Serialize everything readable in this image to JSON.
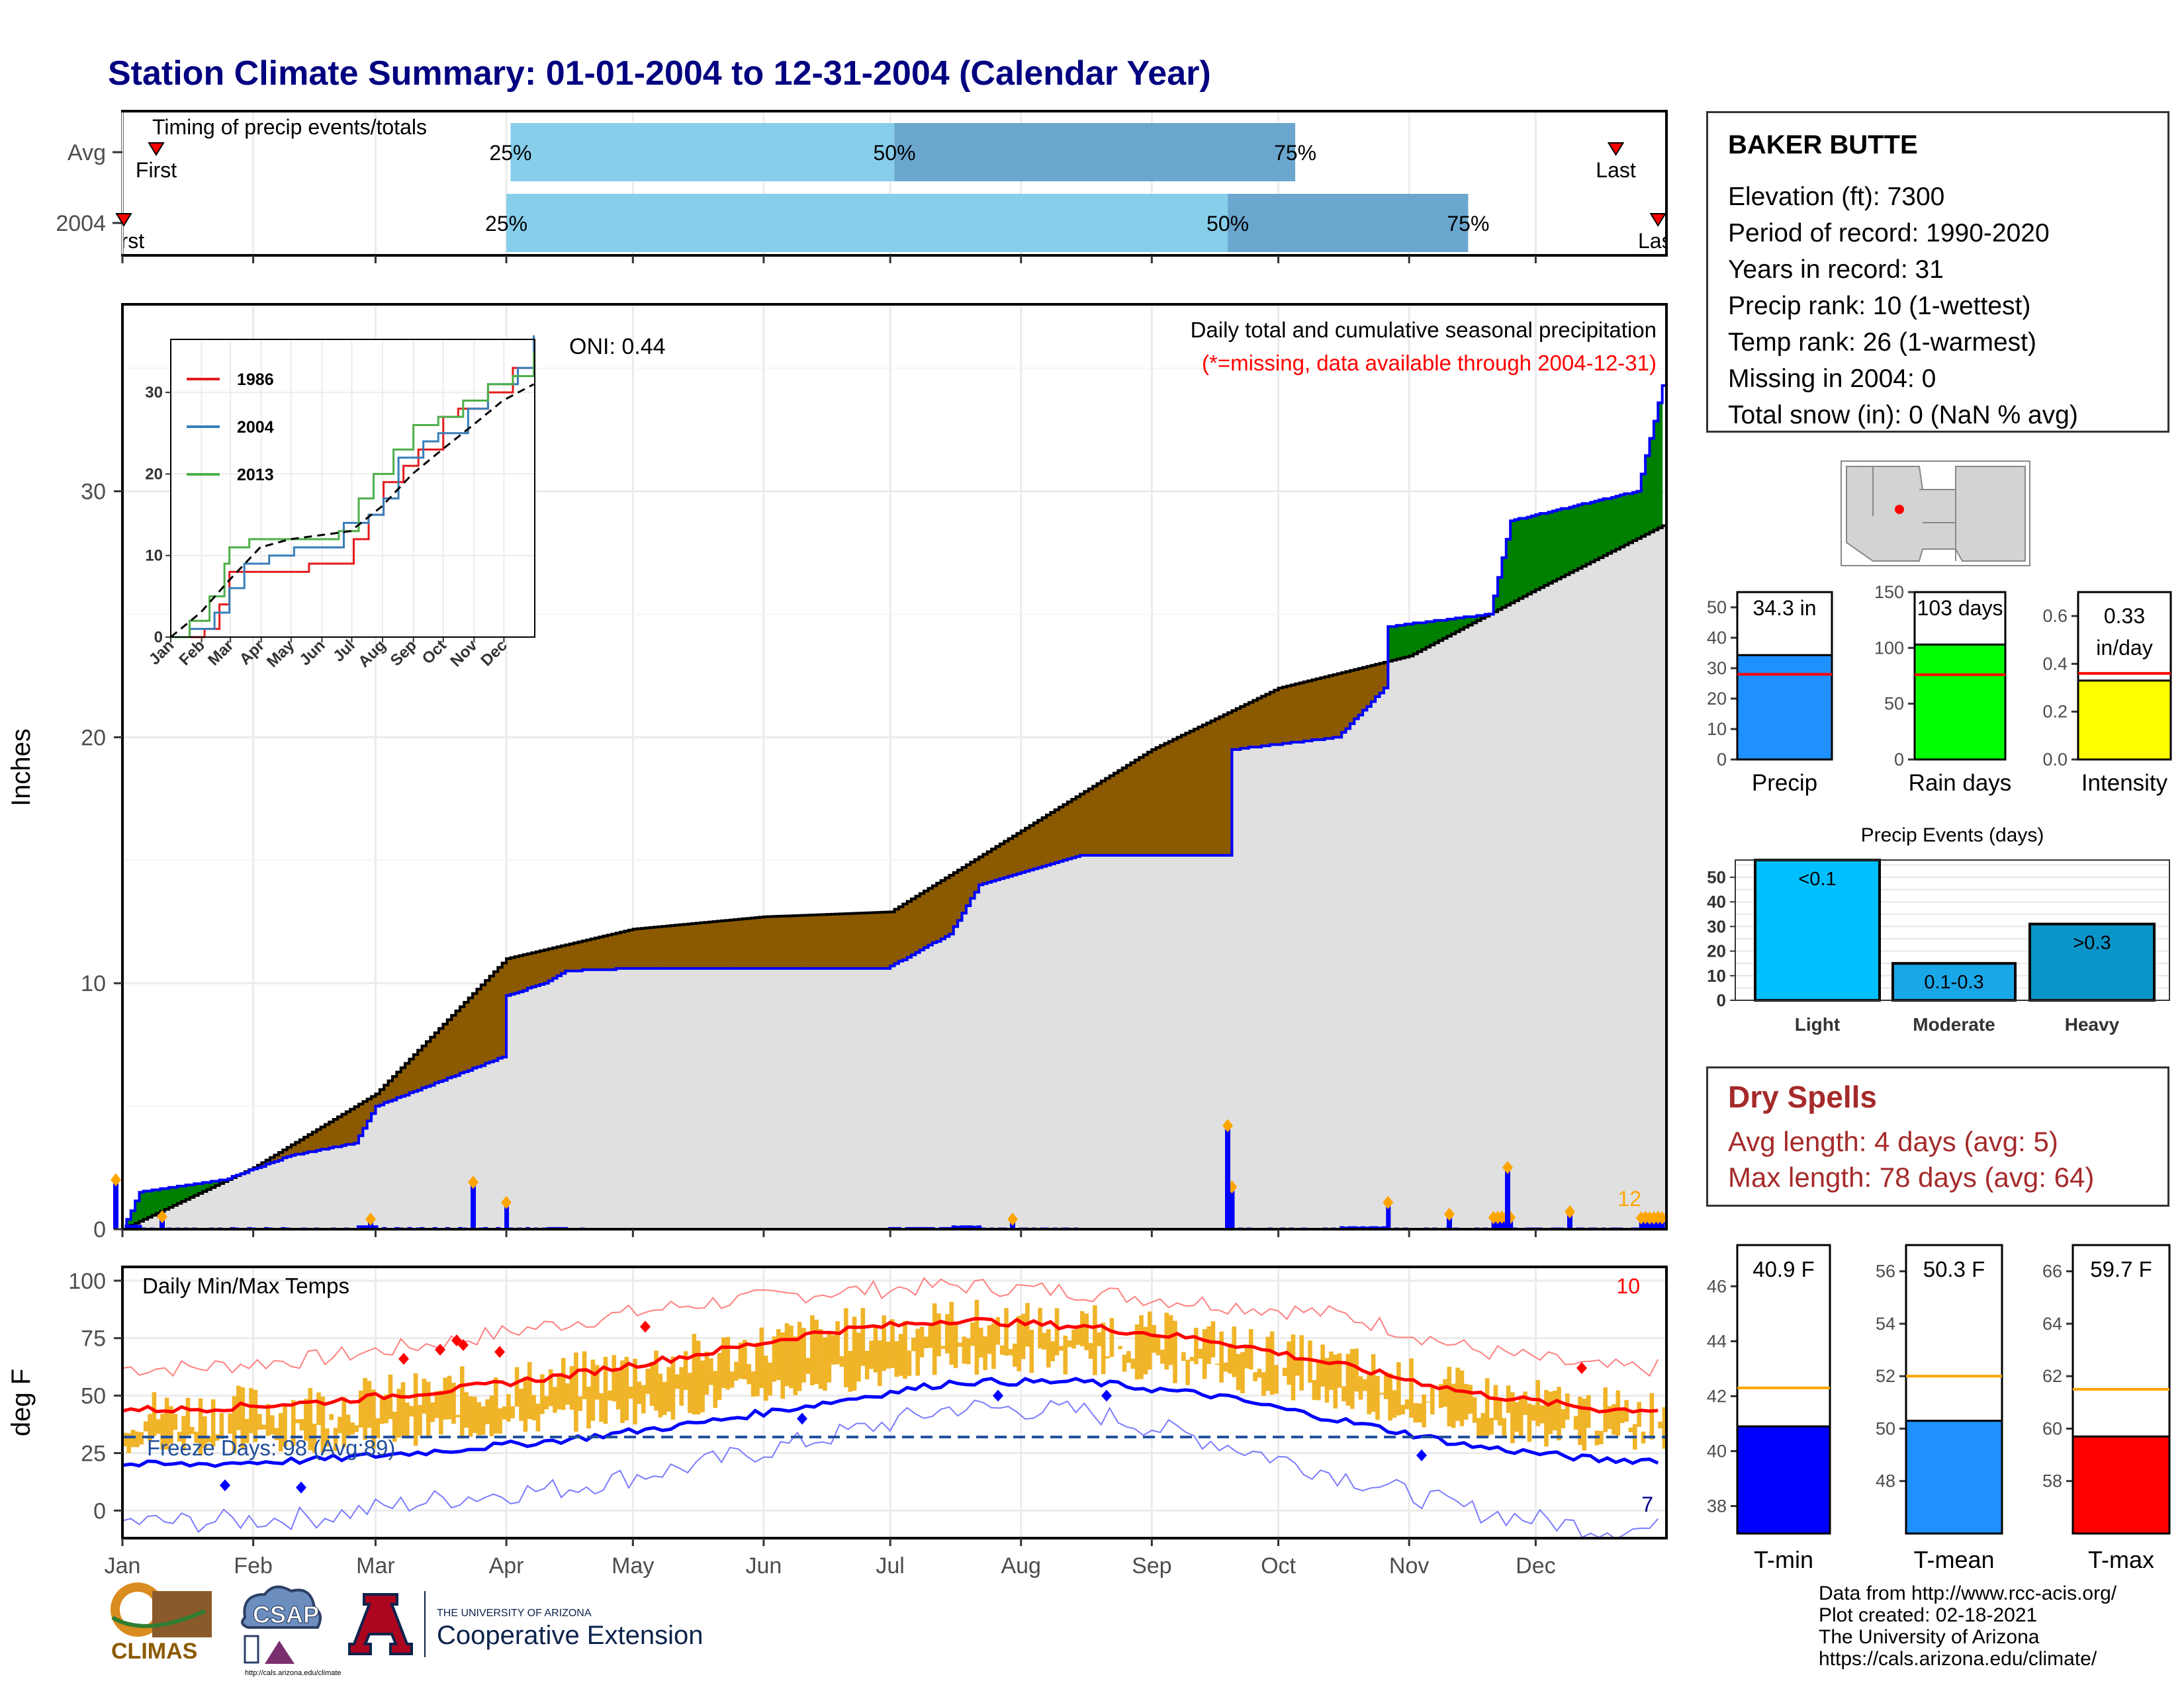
{
  "title": "Station Climate Summary: 01-01-2004 to 12-31-2004 (Calendar Year)",
  "colors": {
    "title": "#000080",
    "brown": "#8B5A00",
    "green": "#008000",
    "blue": "#0000FF",
    "orange": "#FFA500",
    "red": "#FF0000",
    "light_blue": "#87CEEB",
    "mid_blue": "#6AA6CE",
    "gray_fill": "#E0E0E0",
    "temp_bar": "#F0B429"
  },
  "timing": {
    "title": "Timing of precip events/totals",
    "rows": [
      {
        "label": "Avg",
        "first_label": "First",
        "last_label": "Last",
        "first_doy": 9,
        "last_doy": 355,
        "q25_label": "25%",
        "q50_label": "50%",
        "q75_label": "75%",
        "q25_doy": 93,
        "q50_doy": 184,
        "q75_doy": 279
      },
      {
        "label": "2004",
        "first_label": "First",
        "last_label": "Last",
        "first_doy": 1,
        "last_doy": 365,
        "q25_label": "25%",
        "q50_label": "50%",
        "q75_label": "75%",
        "q25_doy": 92,
        "q50_doy": 263,
        "q75_doy": 320
      }
    ]
  },
  "precip": {
    "title_line1": "Daily total and cumulative seasonal precipitation",
    "title_line2": "(*=missing, data available through 2004-12-31)",
    "oni": "ONI: 0.44",
    "ylabel": "Inches",
    "yticks": [
      "0",
      "10",
      "20",
      "30"
    ],
    "count_label": "12"
  },
  "inset": {
    "xticks": [
      "Jan",
      "Feb",
      "Mar",
      "Apr",
      "May",
      "Jun",
      "Jul",
      "Aug",
      "Sep",
      "Oct",
      "Nov",
      "Dec"
    ],
    "yticks": [
      "0",
      "10",
      "20",
      "30"
    ],
    "legend": [
      {
        "name": "1986",
        "color": "#E41A1C"
      },
      {
        "name": "2004",
        "color": "#377EB8"
      },
      {
        "name": "2013",
        "color": "#4DAF4A"
      }
    ]
  },
  "station": {
    "name": "BAKER BUTTE",
    "lines": [
      "Elevation (ft): 7300",
      "Period of record: 1990-2020",
      "Years in record: 31",
      "Precip rank: 10 (1-wettest)",
      "Temp rank: 26 (1-warmest)",
      "Missing in 2004: 0",
      "Total snow (in): 0 (NaN % avg)"
    ]
  },
  "summary_bars": [
    {
      "label": "Precip",
      "value_text": "34.3 in",
      "value": 34.3,
      "avg": 28,
      "max": 55,
      "ticks": [
        "0",
        "10",
        "20",
        "30",
        "40",
        "50"
      ],
      "tickvals": [
        0,
        10,
        20,
        30,
        40,
        50
      ],
      "color": "#1E90FF"
    },
    {
      "label": "Rain days",
      "value_text": "103 days",
      "value": 103,
      "avg": 76,
      "max": 150,
      "ticks": [
        "0",
        "50",
        "100",
        "150"
      ],
      "tickvals": [
        0,
        50,
        100,
        150
      ],
      "color": "#00FF00"
    },
    {
      "label": "Intensity",
      "value_text": "0.33 in/day",
      "value_text_line1": "0.33",
      "value_text_line2": "in/day",
      "value": 0.33,
      "avg": 0.36,
      "max": 0.7,
      "ticks": [
        "0.0",
        "0.2",
        "0.4",
        "0.6"
      ],
      "tickvals": [
        0,
        0.2,
        0.4,
        0.6
      ],
      "color": "#FFFF00"
    }
  ],
  "events": {
    "title": "Precip Events (days)",
    "yticks": [
      "0",
      "10",
      "20",
      "30",
      "40",
      "50"
    ],
    "bars": [
      {
        "label": "Light",
        "inner": "<0.1",
        "value": 57,
        "color": "#00BFFF"
      },
      {
        "label": "Moderate",
        "inner": "0.1-0.3",
        "value": 15,
        "color": "#1AA7E8"
      },
      {
        "label": "Heavy",
        "inner": ">0.3",
        "value": 31,
        "color": "#0A95C9"
      }
    ]
  },
  "dry_spells": {
    "title": "Dry Spells",
    "line1": "Avg length: 4 days (avg: 5)",
    "line2": "Max length: 78 days (avg: 64)"
  },
  "temps": {
    "title": "Daily Min/Max Temps",
    "ylabel": "deg F",
    "yticks": [
      "0",
      "25",
      "50",
      "75",
      "100"
    ],
    "freeze_label": "Freeze Days: 98 (Avg:89)",
    "hot_count": "10",
    "cold_count": "7",
    "months": [
      "Jan",
      "Feb",
      "Mar",
      "Apr",
      "May",
      "Jun",
      "Jul",
      "Aug",
      "Sep",
      "Oct",
      "Nov",
      "Dec"
    ]
  },
  "temp_bars": [
    {
      "label": "T-min",
      "value_text": "40.9 F",
      "value": 40.9,
      "avg": 42.3,
      "min": 37,
      "max": 47.5,
      "ticks": [
        "38",
        "40",
        "42",
        "44",
        "46"
      ],
      "tickvals": [
        38,
        40,
        42,
        44,
        46
      ],
      "color": "#0000FF"
    },
    {
      "label": "T-mean",
      "value_text": "50.3 F",
      "value": 50.3,
      "avg": 52.0,
      "min": 46,
      "max": 57,
      "ticks": [
        "48",
        "50",
        "52",
        "54",
        "56"
      ],
      "tickvals": [
        48,
        50,
        52,
        54,
        56
      ],
      "color": "#1E90FF"
    },
    {
      "label": "T-max",
      "value_text": "59.7 F",
      "value": 59.7,
      "avg": 61.5,
      "min": 56,
      "max": 67,
      "ticks": [
        "58",
        "60",
        "62",
        "64",
        "66"
      ],
      "tickvals": [
        58,
        60,
        62,
        64,
        66
      ],
      "color": "#FF0000"
    }
  ],
  "credits": [
    "Data from http://www.rcc-acis.org/",
    "Plot created: 02-18-2021",
    "The University of Arizona",
    "https://cals.arizona.edu/climate/"
  ],
  "logos": {
    "climas": "CLIMAS",
    "csap": "CSAP",
    "csap_url": "http://cals.arizona.edu/climate",
    "ua_small": "THE UNIVERSITY OF ARIZONA",
    "ua_big": "Cooperative Extension",
    "ua_letter": "A"
  },
  "chart_data": [
    {
      "type": "area",
      "title": "Daily total and cumulative seasonal precipitation",
      "ylabel": "Inches",
      "ylim": [
        0,
        37
      ],
      "series": [
        {
          "name": "2004",
          "x": [
            "01-01",
            "01-05",
            "01-25",
            "02-10",
            "02-25",
            "03-01",
            "03-31",
            "04-01",
            "04-10",
            "04-15",
            "05-01",
            "06-30",
            "07-15",
            "07-22",
            "08-15",
            "09-19",
            "09-20",
            "10-15",
            "10-26",
            "10-27",
            "11-20",
            "11-25",
            "12-25",
            "12-31"
          ],
          "y": [
            0.0,
            1.5,
            2.0,
            3.0,
            3.5,
            5.0,
            7.0,
            9.5,
            10.0,
            10.5,
            10.6,
            10.6,
            12.0,
            14.0,
            15.2,
            15.2,
            19.5,
            20.0,
            22.0,
            24.5,
            25.0,
            28.8,
            30.0,
            34.3
          ]
        },
        {
          "name": "Avg",
          "x": [
            "01-01",
            "02-01",
            "03-01",
            "04-01",
            "05-01",
            "06-01",
            "07-01",
            "08-01",
            "09-01",
            "10-01",
            "11-01",
            "12-01",
            "12-31"
          ],
          "y": [
            0.0,
            2.5,
            5.5,
            11.0,
            12.2,
            12.7,
            12.9,
            16.2,
            19.5,
            22.0,
            23.3,
            26.0,
            28.6
          ]
        }
      ],
      "daily_max_markers": [
        2.2,
        4.2,
        2.5
      ]
    },
    {
      "type": "line",
      "title": "Daily Min/Max Temps",
      "ylabel": "deg F",
      "ylim": [
        -10,
        105
      ],
      "x": [
        "Jan",
        "Feb",
        "Mar",
        "Apr",
        "May",
        "Jun",
        "Jul",
        "Aug",
        "Sep",
        "Oct",
        "Nov",
        "Dec"
      ],
      "series": [
        {
          "name": "avg_max",
          "values": [
            44,
            47,
            52,
            59,
            68,
            78,
            83,
            80,
            74,
            63,
            51,
            44
          ]
        },
        {
          "name": "avg_min",
          "values": [
            20,
            22,
            26,
            31,
            38,
            47,
            56,
            56,
            50,
            39,
            28,
            22
          ]
        },
        {
          "name": "record_high",
          "values": [
            62,
            66,
            73,
            82,
            90,
            95,
            98,
            95,
            90,
            85,
            70,
            62
          ]
        },
        {
          "name": "record_low",
          "values": [
            -5,
            -3,
            5,
            10,
            20,
            32,
            45,
            43,
            30,
            15,
            0,
            -8
          ]
        }
      ],
      "freeze_line": 32
    }
  ]
}
